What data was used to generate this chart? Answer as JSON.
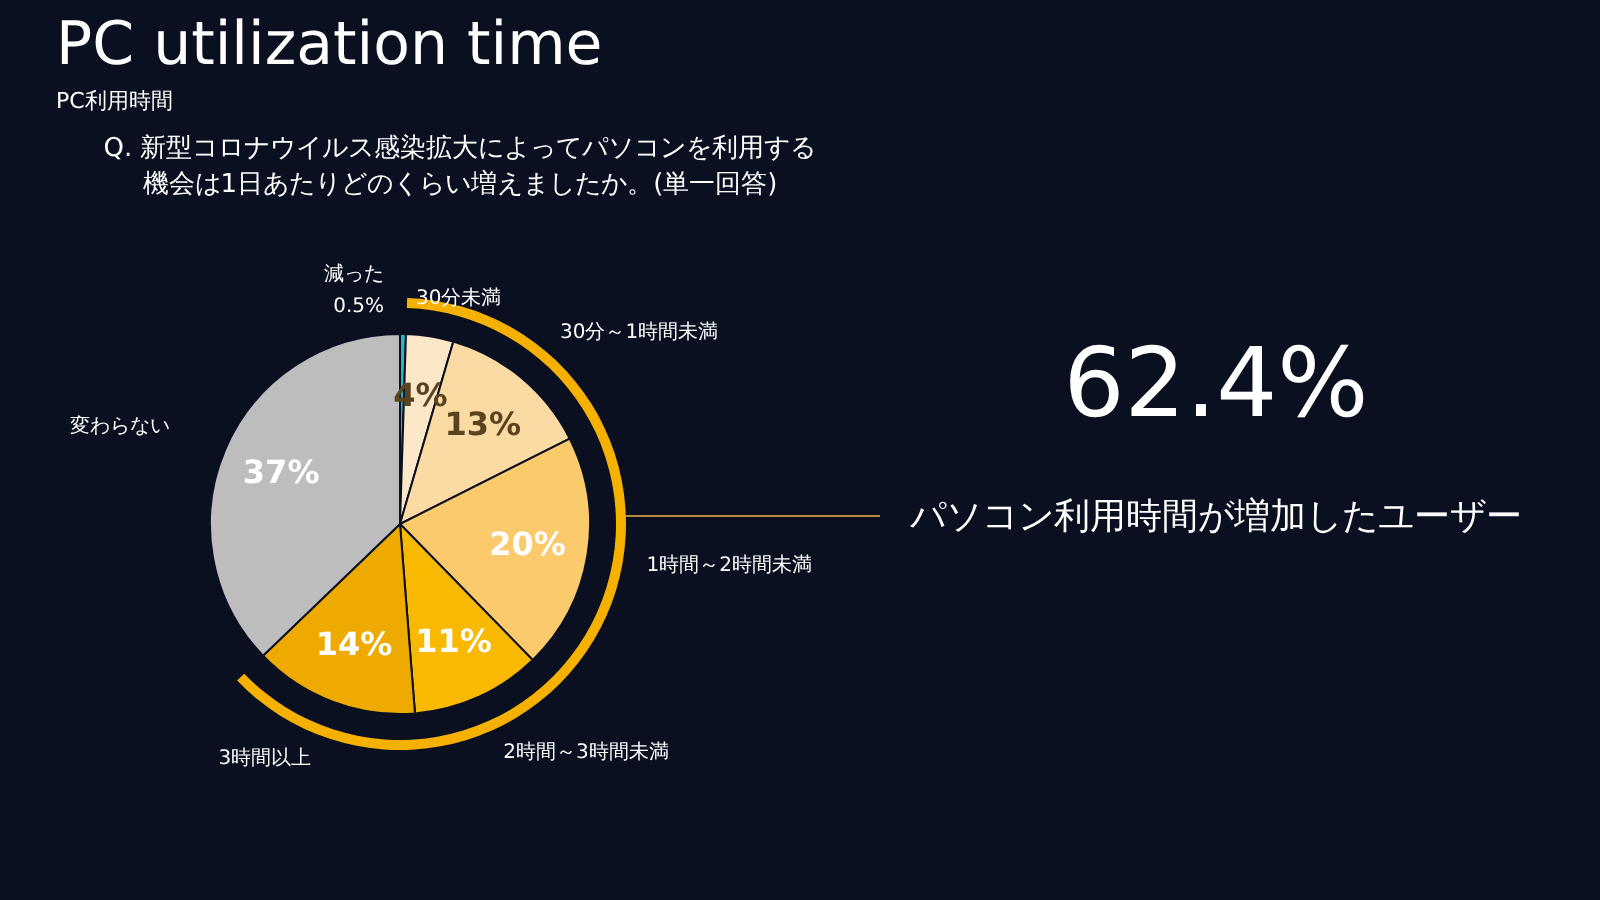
{
  "chart_data": {
    "type": "pie",
    "title": "PC utilization time",
    "subtitle": "PC利用時間",
    "categories": [
      "減った",
      "30分未満",
      "30分～1時間未満",
      "1時間～2時間未満",
      "2時間～3時間未満",
      "3時間以上",
      "変わらない"
    ],
    "values": [
      0.5,
      4,
      13,
      20,
      11,
      14,
      37
    ],
    "value_labels": [
      "0.5%",
      "4%",
      "13%",
      "20%",
      "11%",
      "14%",
      "37%"
    ],
    "colors": [
      "#2ab3c2",
      "#fbe8c8",
      "#fbdba3",
      "#fbca6c",
      "#f9b900",
      "#eeaa00",
      "#bdbdbd"
    ],
    "annotations": [
      "Q. 新型コロナウイルス感染拡大によってパソコンを利用する",
      "機会は1日あたりどのくらい増えましたか。(単一回答)",
      "62.4%",
      "パソコン利用時間が増加したユーザー"
    ]
  }
}
